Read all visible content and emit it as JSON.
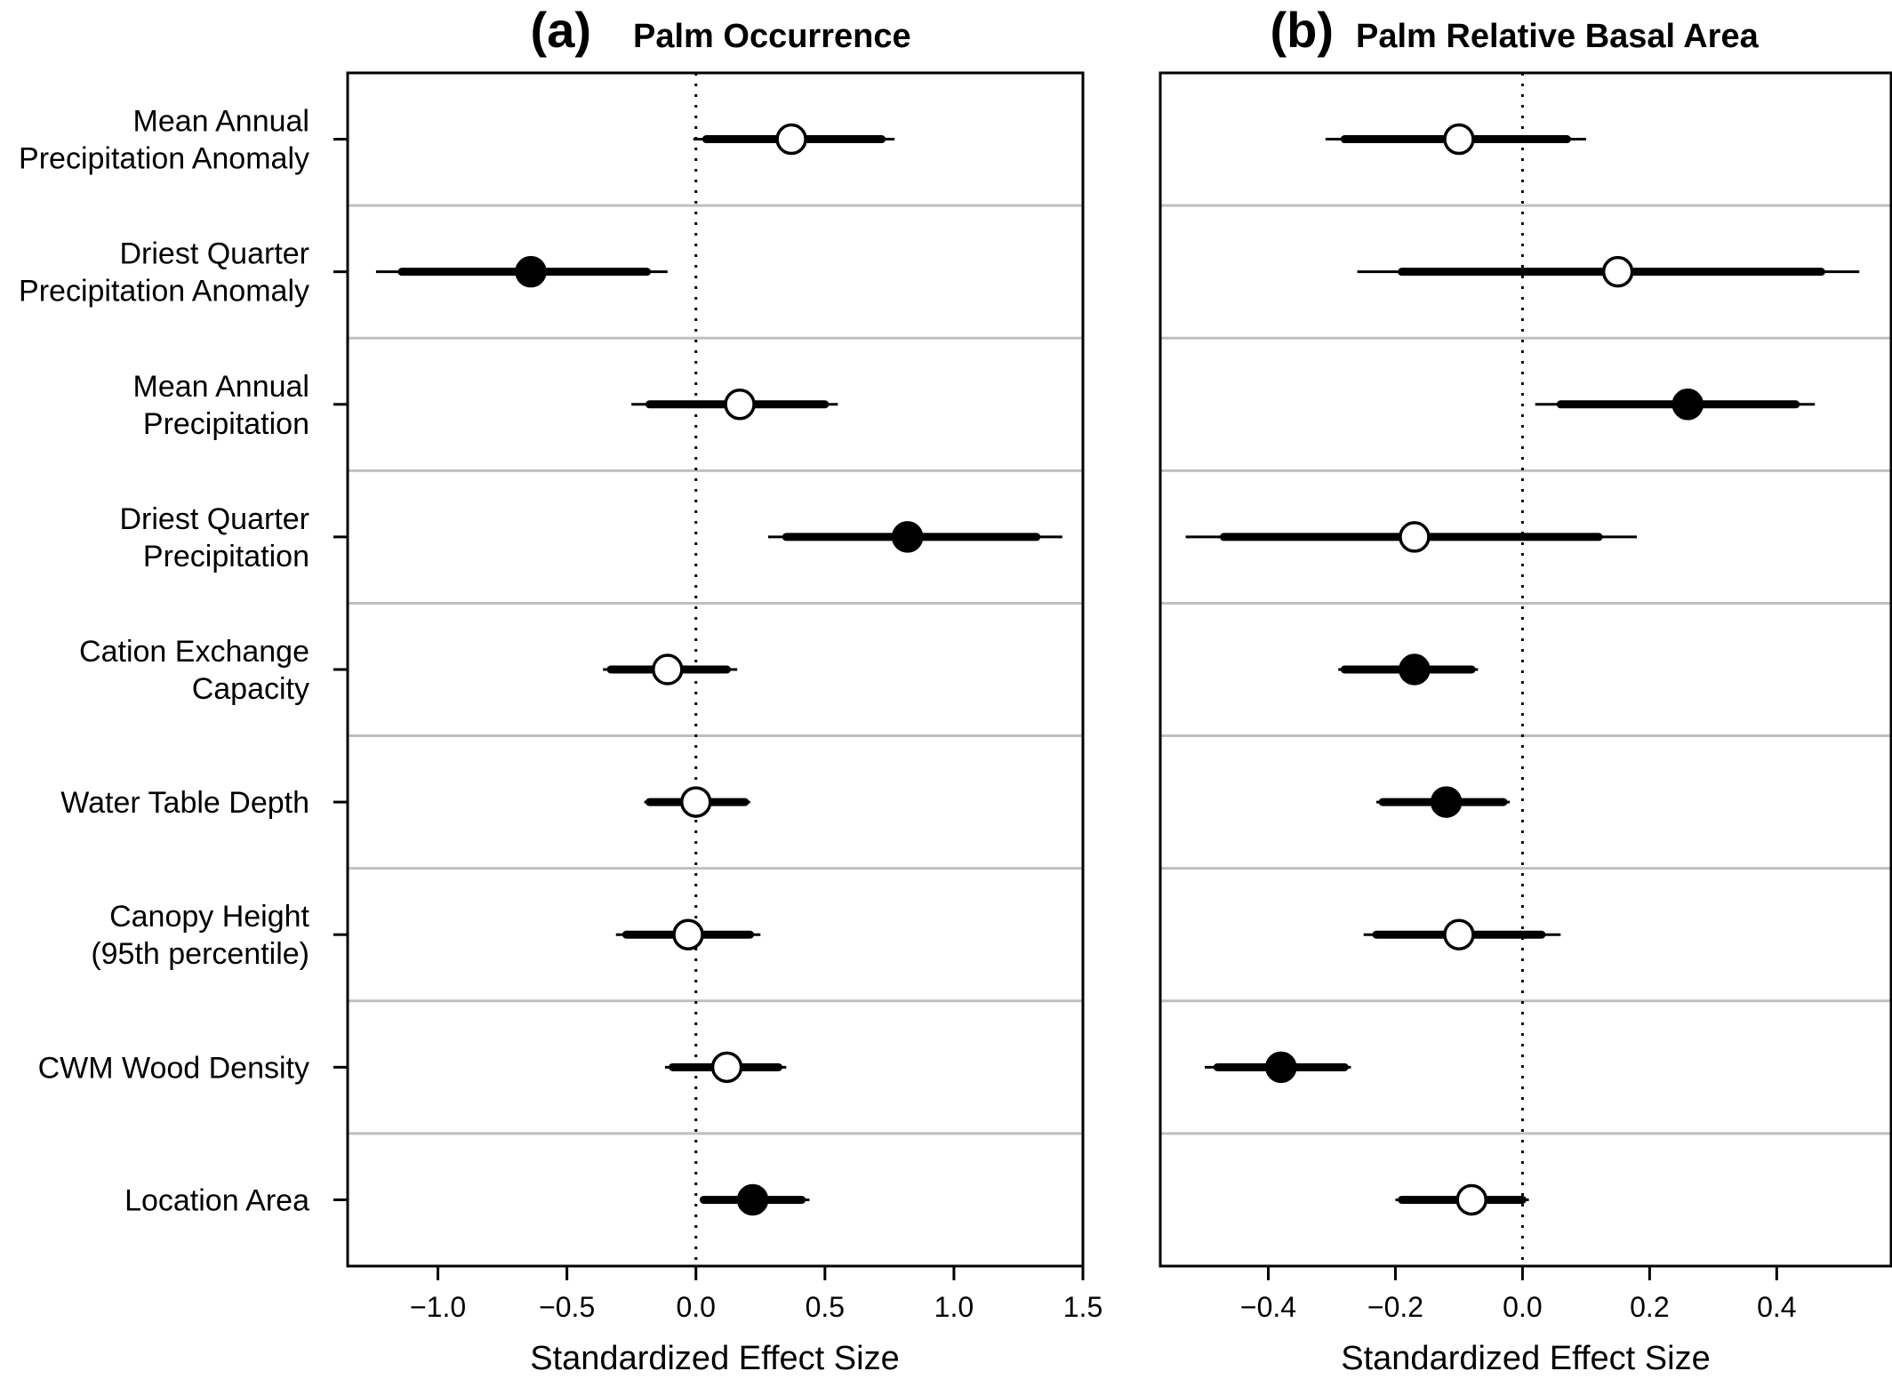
{
  "chart_data": [
    {
      "type": "forest",
      "panel": "(a)",
      "title": "Palm Occurrence",
      "xlabel": "Standardized Effect Size",
      "xlim": [
        -1.35,
        1.5
      ],
      "xticks": [
        -1.0,
        -0.5,
        0.0,
        0.5,
        1.0,
        1.5
      ],
      "xtick_labels": [
        "−1.0",
        "−0.5",
        "0.0",
        "0.5",
        "1.0",
        "1.5"
      ],
      "reference_line": 0,
      "points": [
        {
          "label": [
            "Mean Annual",
            "Precipitation Anomaly"
          ],
          "estimate": 0.37,
          "ci50": [
            0.04,
            0.72
          ],
          "ci95": [
            -0.01,
            0.77
          ],
          "filled": false
        },
        {
          "label": [
            "Driest Quarter",
            "Precipitation Anomaly"
          ],
          "estimate": -0.64,
          "ci50": [
            -1.14,
            -0.19
          ],
          "ci95": [
            -1.24,
            -0.11
          ],
          "filled": true
        },
        {
          "label": [
            "Mean Annual",
            "Precipitation"
          ],
          "estimate": 0.17,
          "ci50": [
            -0.18,
            0.5
          ],
          "ci95": [
            -0.25,
            0.55
          ],
          "filled": false
        },
        {
          "label": [
            "Driest Quarter",
            "Precipitation"
          ],
          "estimate": 0.82,
          "ci50": [
            0.35,
            1.32
          ],
          "ci95": [
            0.28,
            1.42
          ],
          "filled": true
        },
        {
          "label": [
            "Cation Exchange",
            "Capacity"
          ],
          "estimate": -0.11,
          "ci50": [
            -0.33,
            0.12
          ],
          "ci95": [
            -0.36,
            0.16
          ],
          "filled": false
        },
        {
          "label": [
            "Water Table Depth"
          ],
          "estimate": 0.0,
          "ci50": [
            -0.18,
            0.19
          ],
          "ci95": [
            -0.2,
            0.21
          ],
          "filled": false
        },
        {
          "label": [
            "Canopy Height",
            "(95th percentile)"
          ],
          "estimate": -0.03,
          "ci50": [
            -0.27,
            0.21
          ],
          "ci95": [
            -0.31,
            0.25
          ],
          "filled": false
        },
        {
          "label": [
            "CWM Wood Density"
          ],
          "estimate": 0.12,
          "ci50": [
            -0.09,
            0.32
          ],
          "ci95": [
            -0.12,
            0.35
          ],
          "filled": false
        },
        {
          "label": [
            "Location Area"
          ],
          "estimate": 0.22,
          "ci50": [
            0.03,
            0.41
          ],
          "ci95": [
            0.02,
            0.44
          ],
          "filled": true
        }
      ]
    },
    {
      "type": "forest",
      "panel": "(b)",
      "title": "Palm Relative Basal Area",
      "xlabel": "Standardized Effect Size",
      "xlim": [
        -0.57,
        0.58
      ],
      "xticks": [
        -0.4,
        -0.2,
        0.0,
        0.2,
        0.4
      ],
      "xtick_labels": [
        "−0.4",
        "−0.2",
        "0.0",
        "0.2",
        "0.4"
      ],
      "reference_line": 0,
      "points": [
        {
          "label": [
            "Mean Annual",
            "Precipitation Anomaly"
          ],
          "estimate": -0.1,
          "ci50": [
            -0.28,
            0.07
          ],
          "ci95": [
            -0.31,
            0.1
          ],
          "filled": false
        },
        {
          "label": [
            "Driest Quarter",
            "Precipitation Anomaly"
          ],
          "estimate": 0.15,
          "ci50": [
            -0.19,
            0.47
          ],
          "ci95": [
            -0.26,
            0.53
          ],
          "filled": false
        },
        {
          "label": [
            "Mean Annual",
            "Precipitation"
          ],
          "estimate": 0.26,
          "ci50": [
            0.06,
            0.43
          ],
          "ci95": [
            0.02,
            0.46
          ],
          "filled": true
        },
        {
          "label": [
            "Driest Quarter",
            "Precipitation"
          ],
          "estimate": -0.17,
          "ci50": [
            -0.47,
            0.12
          ],
          "ci95": [
            -0.53,
            0.18
          ],
          "filled": false
        },
        {
          "label": [
            "Cation Exchange",
            "Capacity"
          ],
          "estimate": -0.17,
          "ci50": [
            -0.28,
            -0.08
          ],
          "ci95": [
            -0.29,
            -0.07
          ],
          "filled": true
        },
        {
          "label": [
            "Water Table Depth"
          ],
          "estimate": -0.12,
          "ci50": [
            -0.22,
            -0.03
          ],
          "ci95": [
            -0.23,
            -0.02
          ],
          "filled": true
        },
        {
          "label": [
            "Canopy Height",
            "(95th percentile)"
          ],
          "estimate": -0.1,
          "ci50": [
            -0.23,
            0.03
          ],
          "ci95": [
            -0.25,
            0.06
          ],
          "filled": false
        },
        {
          "label": [
            "CWM Wood Density"
          ],
          "estimate": -0.38,
          "ci50": [
            -0.48,
            -0.28
          ],
          "ci95": [
            -0.5,
            -0.27
          ],
          "filled": true
        },
        {
          "label": [
            "Location Area"
          ],
          "estimate": -0.08,
          "ci50": [
            -0.19,
            0.0
          ],
          "ci95": [
            -0.2,
            0.01
          ],
          "filled": false
        }
      ]
    }
  ],
  "colors": {
    "ink": "#000000",
    "separator": "#bfbfbf",
    "open_marker_fill": "#ffffff"
  }
}
